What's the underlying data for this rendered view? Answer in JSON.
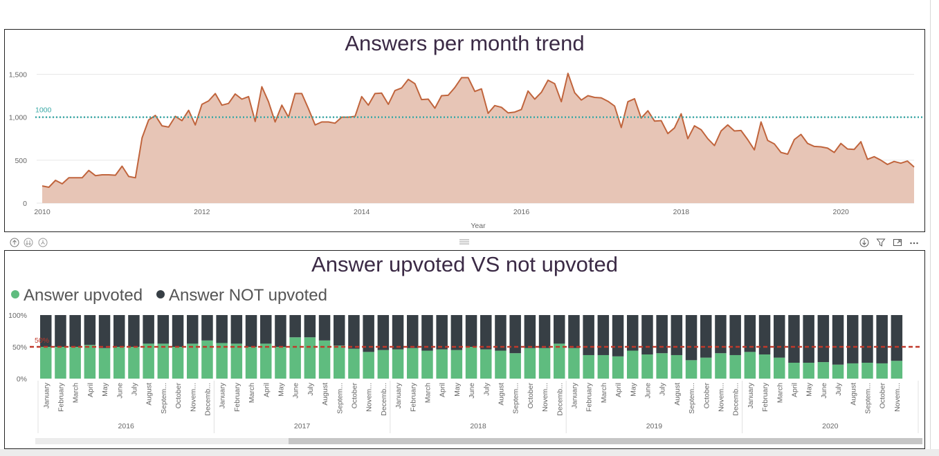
{
  "visual1": {
    "title": "Answers per month trend",
    "reference_label": "1000",
    "colors": {
      "line": "#c0643c",
      "area": "#e7c5b6",
      "reference": "#3aa9a6",
      "grid": "#e6e6e6",
      "axis_text": "#666666"
    }
  },
  "visual2": {
    "title": "Answer upvoted VS not upvoted",
    "reference_label": "50%",
    "legend": [
      {
        "label": "Answer upvoted",
        "color": "#5fbc7f"
      },
      {
        "label": "Answer NOT upvoted",
        "color": "#373f45"
      }
    ],
    "colors": {
      "upvoted": "#5fbc7f",
      "not_upvoted": "#373f45",
      "reference": "#c0392b",
      "axis_text": "#666666"
    }
  },
  "header_icons": [
    "drill-up-icon",
    "drill-down-all-icon",
    "expand-hierarchy-icon",
    "drill-mode-icon",
    "filter-icon",
    "focus-mode-icon",
    "more-options-icon"
  ],
  "chart_data": [
    {
      "type": "area",
      "title": "Answers per month trend",
      "xlabel": "Year",
      "ylabel": "",
      "x_ticks": [
        "2010",
        "2012",
        "2014",
        "2016",
        "2018",
        "2020"
      ],
      "y_ticks": [
        "0",
        "500",
        "1,000",
        "1,500"
      ],
      "ylim": [
        0,
        1600
      ],
      "x_range": [
        "2010-01",
        "2020-12"
      ],
      "reference_line": 1000,
      "series": [
        {
          "values": [
            200,
            185,
            265,
            225,
            295,
            295,
            295,
            380,
            320,
            330,
            330,
            325,
            430,
            310,
            295,
            760,
            970,
            1020,
            900,
            885,
            1010,
            960,
            1080,
            910,
            1150,
            1190,
            1275,
            1140,
            1160,
            1270,
            1210,
            1240,
            950,
            1355,
            1180,
            945,
            1140,
            1000,
            1275,
            1275,
            1100,
            910,
            945,
            945,
            930,
            1000,
            1000,
            1010,
            1240,
            1140,
            1275,
            1280,
            1150,
            1310,
            1340,
            1440,
            1390,
            1205,
            1210,
            1105,
            1250,
            1255,
            1345,
            1460,
            1460,
            1300,
            1330,
            1045,
            1135,
            1115,
            1050,
            1060,
            1090,
            1305,
            1210,
            1290,
            1430,
            1390,
            1180,
            1510,
            1285,
            1200,
            1250,
            1230,
            1225,
            1185,
            1130,
            880,
            1180,
            1215,
            990,
            1075,
            955,
            960,
            810,
            875,
            1040,
            750,
            900,
            855,
            750,
            670,
            840,
            910,
            840,
            845,
            740,
            620,
            945,
            730,
            690,
            590,
            570,
            740,
            800,
            695,
            660,
            655,
            640,
            590,
            695,
            630,
            625,
            715,
            510,
            540,
            500,
            450,
            485,
            465,
            490,
            420
          ]
        }
      ]
    },
    {
      "type": "bar",
      "stacked": true,
      "percent": true,
      "title": "Answer upvoted VS not upvoted",
      "y_ticks": [
        "0%",
        "50%",
        "100%"
      ],
      "ylim": [
        0,
        100
      ],
      "reference_line": 50,
      "years": [
        "2016",
        "2017",
        "2018",
        "2019",
        "2020"
      ],
      "months": [
        "January",
        "February",
        "March",
        "April",
        "May",
        "June",
        "July",
        "August",
        "Septem...",
        "October",
        "Novem...",
        "Decemb..."
      ],
      "series": [
        {
          "name": "Answer upvoted",
          "values": [
            50,
            50,
            50,
            53,
            48,
            50,
            50,
            55,
            55,
            50,
            55,
            60,
            56,
            55,
            50,
            55,
            50,
            65,
            65,
            60,
            52,
            47,
            42,
            45,
            46,
            48,
            44,
            46,
            45,
            50,
            46,
            44,
            40,
            48,
            48,
            55,
            48,
            37,
            37,
            35,
            44,
            38,
            40,
            37,
            29,
            33,
            40,
            37,
            42,
            38,
            33,
            25,
            25,
            26,
            22,
            24,
            25,
            24,
            28
          ]
        },
        {
          "name": "Answer NOT upvoted",
          "values": [
            50,
            50,
            50,
            47,
            52,
            50,
            50,
            45,
            45,
            50,
            45,
            40,
            44,
            45,
            50,
            45,
            50,
            35,
            35,
            40,
            48,
            53,
            58,
            55,
            54,
            52,
            56,
            54,
            55,
            50,
            54,
            56,
            60,
            52,
            52,
            45,
            52,
            63,
            63,
            65,
            56,
            62,
            60,
            63,
            71,
            67,
            60,
            63,
            58,
            62,
            67,
            75,
            75,
            74,
            78,
            76,
            75,
            76,
            72
          ]
        }
      ]
    }
  ]
}
